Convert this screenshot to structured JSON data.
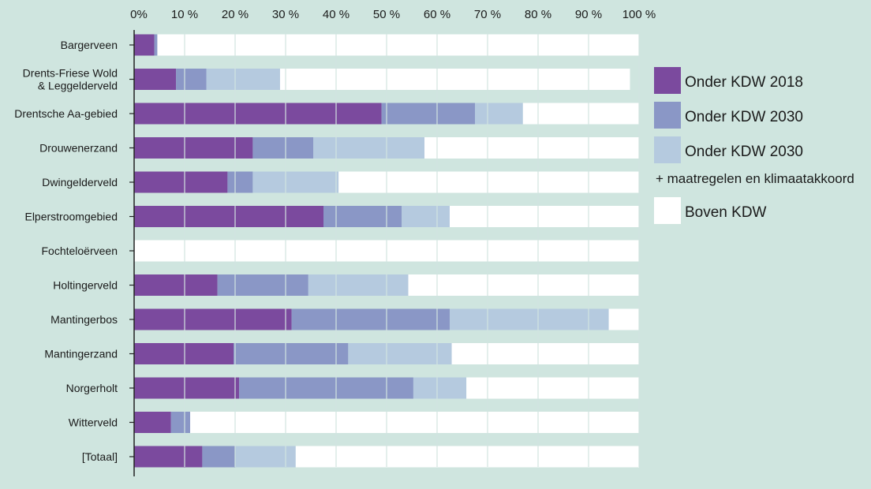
{
  "chart_data": {
    "type": "bar",
    "orientation": "horizontal",
    "stacked": true,
    "title": "",
    "xlabel": "",
    "ylabel": "",
    "xlim": [
      0,
      100
    ],
    "ticks": [
      0,
      10,
      20,
      30,
      40,
      50,
      60,
      70,
      80,
      90,
      100
    ],
    "tick_labels": [
      "0%",
      "10 %",
      "20 %",
      "30 %",
      "40 %",
      "50 %",
      "60 %",
      "70 %",
      "80 %",
      "90 %",
      "100 %"
    ],
    "categories": [
      [
        "Bargerveen"
      ],
      [
        "Drents-Friese Wold",
        "& Leggelderveld"
      ],
      [
        "Drentsche Aa-gebied"
      ],
      [
        "Drouwenerzand"
      ],
      [
        "Dwingelderveld"
      ],
      [
        "Elperstroomgebied"
      ],
      [
        "Fochteloërveen"
      ],
      [
        "Holtingerveld"
      ],
      [
        "Mantingerbos"
      ],
      [
        "Mantingerzand"
      ],
      [
        "Norgerholt"
      ],
      [
        "Witterveld"
      ],
      [
        "[Totaal]"
      ]
    ],
    "series": [
      {
        "name": "Onder KDW 2018",
        "color": "#7b4a9e",
        "values": [
          4,
          8.3,
          49,
          23.5,
          18.5,
          37.5,
          0,
          16.5,
          31.2,
          19.7,
          20.8,
          7.3,
          13.5
        ]
      },
      {
        "name": "Onder KDW 2030",
        "color": "#8a97c6",
        "values": [
          0.6,
          6,
          18.5,
          12,
          5,
          15.5,
          0,
          18,
          31.3,
          22.7,
          34.5,
          3.8,
          6.5
        ]
      },
      {
        "name": "Onder KDW 2030",
        "note": "+ maatregelen en klimaatakkoord",
        "color": "#b5cadf",
        "values": [
          0,
          14.6,
          9.5,
          22,
          17,
          9.5,
          0,
          19.8,
          31.5,
          20.5,
          10.5,
          0,
          12
        ]
      },
      {
        "name": "Boven KDW",
        "color": "#ffffff",
        "values": [
          95.4,
          69.3,
          23,
          42.5,
          59.5,
          37.5,
          100,
          45.7,
          6,
          37.1,
          34.2,
          88.9,
          68
        ]
      }
    ],
    "legend": {
      "position": "right",
      "items": [
        {
          "label": "Onder KDW 2018",
          "color": "#7b4a9e"
        },
        {
          "label": "Onder KDW 2030",
          "color": "#8a97c6"
        },
        {
          "label": "Onder KDW 2030",
          "color": "#b5cadf"
        },
        {
          "label": "+ maatregelen en klimaatakkoord",
          "color": ""
        },
        {
          "label": "Boven KDW",
          "color": "#ffffff"
        }
      ]
    }
  }
}
